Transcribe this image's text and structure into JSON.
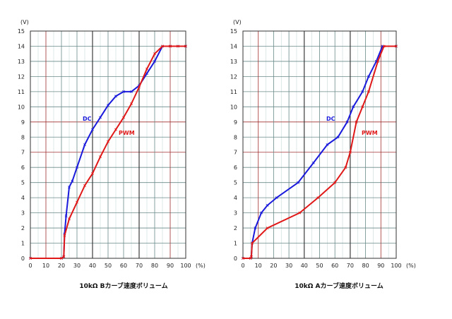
{
  "chart_data": [
    {
      "type": "line",
      "title": "10kΩ Bカーブ速度ボリューム",
      "y_unit": "(V)",
      "x_unit": "(%)",
      "xlim": [
        0,
        100
      ],
      "ylim": [
        0,
        15
      ],
      "x_ticks": [
        "0",
        "10",
        "20",
        "30",
        "40",
        "50",
        "60",
        "70",
        "80",
        "90",
        "100"
      ],
      "y_ticks": [
        "0",
        "1",
        "2",
        "3",
        "4",
        "5",
        "6",
        "7",
        "8",
        "9",
        "10",
        "11",
        "12",
        "13",
        "14",
        "15"
      ],
      "grid": true,
      "series": [
        {
          "name": "DC",
          "color": "#1a1adc",
          "points": [
            [
              0,
              0
            ],
            [
              20,
              0
            ],
            [
              21.5,
              0.1
            ],
            [
              22,
              1.6
            ],
            [
              23,
              2.8
            ],
            [
              25,
              4.7
            ],
            [
              27,
              5.1
            ],
            [
              30,
              6.0
            ],
            [
              35,
              7.5
            ],
            [
              40,
              8.5
            ],
            [
              45,
              9.3
            ],
            [
              50,
              10.1
            ],
            [
              55,
              10.7
            ],
            [
              60,
              11.0
            ],
            [
              65,
              11.0
            ],
            [
              70,
              11.4
            ],
            [
              75,
              12.2
            ],
            [
              80,
              13.0
            ],
            [
              85,
              14.0
            ],
            [
              90,
              14.0
            ],
            [
              95,
              14.0
            ],
            [
              100,
              14.0
            ]
          ]
        },
        {
          "name": "PWM",
          "color": "#e01818",
          "points": [
            [
              0,
              0
            ],
            [
              20,
              0
            ],
            [
              21.5,
              0.1
            ],
            [
              22,
              1.5
            ],
            [
              25,
              2.6
            ],
            [
              30,
              3.7
            ],
            [
              35,
              4.8
            ],
            [
              40,
              5.6
            ],
            [
              45,
              6.7
            ],
            [
              50,
              7.7
            ],
            [
              55,
              8.5
            ],
            [
              60,
              9.3
            ],
            [
              65,
              10.2
            ],
            [
              70,
              11.3
            ],
            [
              75,
              12.5
            ],
            [
              80,
              13.5
            ],
            [
              85,
              14.0
            ],
            [
              90,
              14.0
            ],
            [
              95,
              14.0
            ],
            [
              100,
              14.0
            ]
          ]
        }
      ]
    },
    {
      "type": "line",
      "title": "10kΩ Aカーブ速度ボリューム",
      "y_unit": "(V)",
      "x_unit": "(%)",
      "xlim": [
        0,
        100
      ],
      "ylim": [
        0,
        15
      ],
      "x_ticks": [
        "0",
        "10",
        "20",
        "30",
        "40",
        "50",
        "60",
        "70",
        "80",
        "90",
        "100"
      ],
      "y_ticks": [
        "0",
        "1",
        "2",
        "3",
        "4",
        "5",
        "6",
        "7",
        "8",
        "9",
        "10",
        "11",
        "12",
        "13",
        "14",
        "15"
      ],
      "grid": true,
      "series": [
        {
          "name": "DC",
          "color": "#1a1adc",
          "points": [
            [
              0,
              0
            ],
            [
              5,
              0
            ],
            [
              5.5,
              0.1
            ],
            [
              6,
              1.0
            ],
            [
              8,
              2.0
            ],
            [
              12,
              3.0
            ],
            [
              16,
              3.5
            ],
            [
              22,
              4.0
            ],
            [
              36,
              5.0
            ],
            [
              46,
              6.3
            ],
            [
              55,
              7.5
            ],
            [
              62,
              8.0
            ],
            [
              68,
              9.0
            ],
            [
              72,
              10.0
            ],
            [
              78,
              11.0
            ],
            [
              82,
              12.0
            ],
            [
              87,
              13.0
            ],
            [
              91,
              14.0
            ],
            [
              100,
              14.0
            ]
          ]
        },
        {
          "name": "PWM",
          "color": "#e01818",
          "points": [
            [
              0,
              0
            ],
            [
              5,
              0
            ],
            [
              5.5,
              0.1
            ],
            [
              6,
              1.0
            ],
            [
              16,
              2.0
            ],
            [
              37,
              3.0
            ],
            [
              49,
              4.0
            ],
            [
              60,
              5.0
            ],
            [
              67,
              6.0
            ],
            [
              70,
              7.0
            ],
            [
              74,
              9.0
            ],
            [
              78,
              10.0
            ],
            [
              82,
              11.0
            ],
            [
              88,
              13.0
            ],
            [
              92,
              14.0
            ],
            [
              100,
              14.0
            ]
          ]
        }
      ]
    }
  ]
}
